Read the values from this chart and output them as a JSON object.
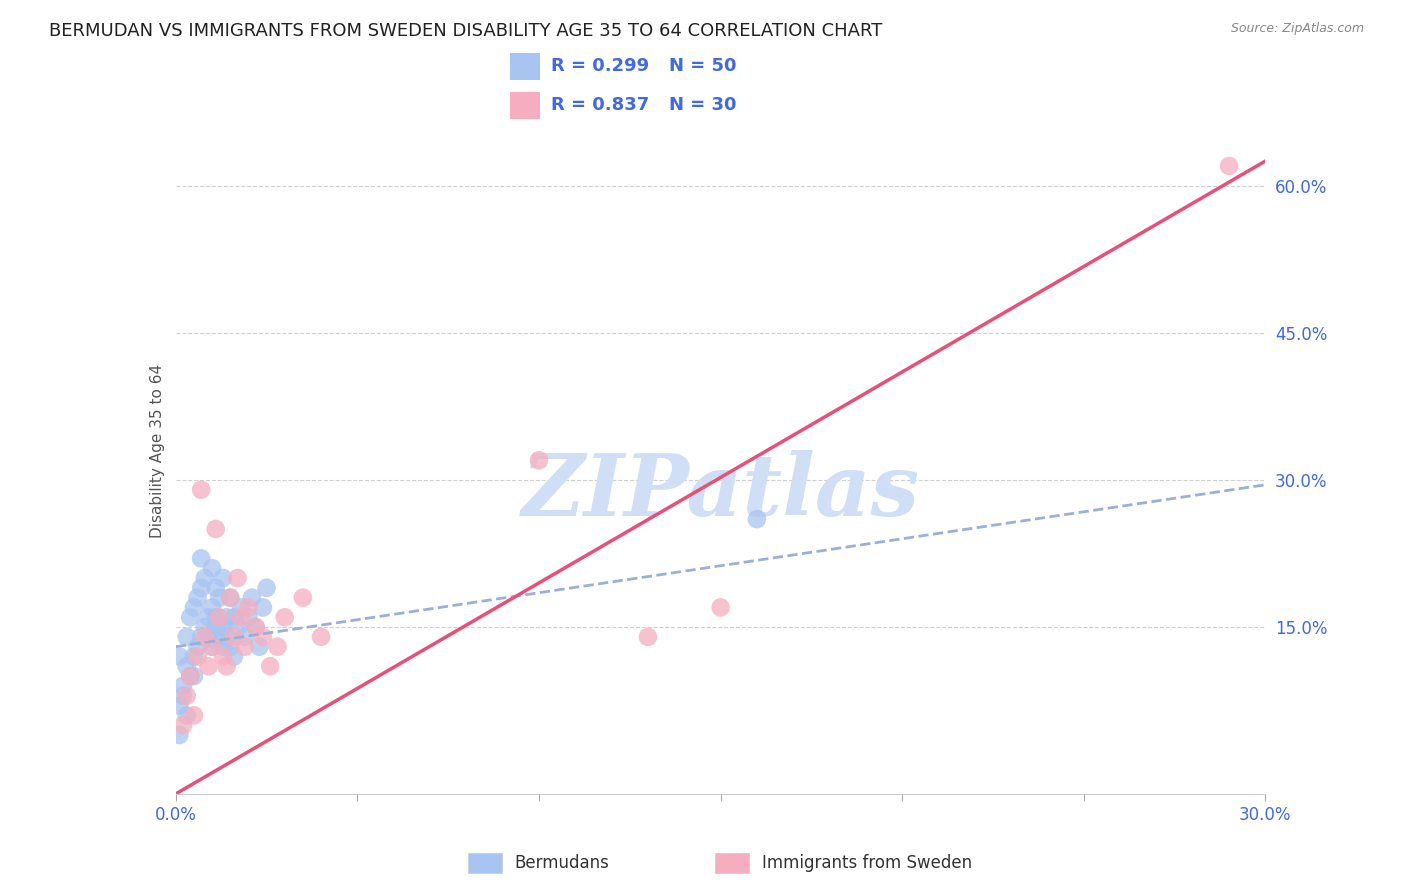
{
  "title": "BERMUDAN VS IMMIGRANTS FROM SWEDEN DISABILITY AGE 35 TO 64 CORRELATION CHART",
  "source": "Source: ZipAtlas.com",
  "ylabel": "Disability Age 35 to 64",
  "xlim": [
    0.0,
    0.3
  ],
  "ylim": [
    -0.02,
    0.68
  ],
  "xticks": [
    0.0,
    0.05,
    0.1,
    0.15,
    0.2,
    0.25,
    0.3
  ],
  "yticks_right": [
    0.15,
    0.3,
    0.45,
    0.6
  ],
  "yticklabels_right": [
    "15.0%",
    "30.0%",
    "45.0%",
    "60.0%"
  ],
  "blue_R": 0.299,
  "blue_N": 50,
  "pink_R": 0.837,
  "pink_N": 30,
  "blue_color": "#a8c4f0",
  "pink_color": "#f5aec0",
  "blue_line_color": "#4169e1",
  "pink_line_color": "#e8507a",
  "watermark": "ZIPatlas",
  "watermark_color": "#d0dff5",
  "legend_label_blue": "Bermudans",
  "legend_label_pink": "Immigrants from Sweden",
  "grid_color": "#d0d0d0",
  "background_color": "#ffffff",
  "title_fontsize": 13,
  "axis_label_fontsize": 11,
  "tick_fontsize": 12,
  "blue_line_intercept": 0.13,
  "blue_line_slope": 0.55,
  "pink_line_intercept": -0.02,
  "pink_line_slope": 2.15,
  "blue_scatter_x": [
    0.001,
    0.002,
    0.003,
    0.003,
    0.004,
    0.004,
    0.005,
    0.005,
    0.006,
    0.006,
    0.007,
    0.007,
    0.008,
    0.008,
    0.009,
    0.009,
    0.01,
    0.01,
    0.01,
    0.011,
    0.011,
    0.012,
    0.012,
    0.013,
    0.013,
    0.014,
    0.014,
    0.015,
    0.015,
    0.016,
    0.016,
    0.017,
    0.018,
    0.019,
    0.02,
    0.021,
    0.022,
    0.023,
    0.024,
    0.025,
    0.001,
    0.002,
    0.003,
    0.005,
    0.007,
    0.009,
    0.011,
    0.013,
    0.16,
    0.001
  ],
  "blue_scatter_y": [
    0.07,
    0.09,
    0.11,
    0.14,
    0.1,
    0.16,
    0.12,
    0.17,
    0.13,
    0.18,
    0.14,
    0.19,
    0.15,
    0.2,
    0.16,
    0.14,
    0.13,
    0.17,
    0.21,
    0.15,
    0.19,
    0.14,
    0.18,
    0.15,
    0.2,
    0.16,
    0.14,
    0.13,
    0.18,
    0.16,
    0.12,
    0.15,
    0.17,
    0.14,
    0.16,
    0.18,
    0.15,
    0.13,
    0.17,
    0.19,
    0.12,
    0.08,
    0.06,
    0.1,
    0.22,
    0.14,
    0.16,
    0.13,
    0.26,
    0.04
  ],
  "pink_scatter_x": [
    0.002,
    0.003,
    0.004,
    0.005,
    0.006,
    0.007,
    0.008,
    0.009,
    0.01,
    0.011,
    0.012,
    0.013,
    0.014,
    0.015,
    0.016,
    0.017,
    0.018,
    0.019,
    0.02,
    0.022,
    0.024,
    0.026,
    0.028,
    0.03,
    0.035,
    0.04,
    0.1,
    0.15,
    0.29,
    0.13
  ],
  "pink_scatter_y": [
    0.05,
    0.08,
    0.1,
    0.06,
    0.12,
    0.29,
    0.14,
    0.11,
    0.13,
    0.25,
    0.16,
    0.12,
    0.11,
    0.18,
    0.14,
    0.2,
    0.16,
    0.13,
    0.17,
    0.15,
    0.14,
    0.11,
    0.13,
    0.16,
    0.18,
    0.14,
    0.32,
    0.17,
    0.62,
    0.14
  ]
}
